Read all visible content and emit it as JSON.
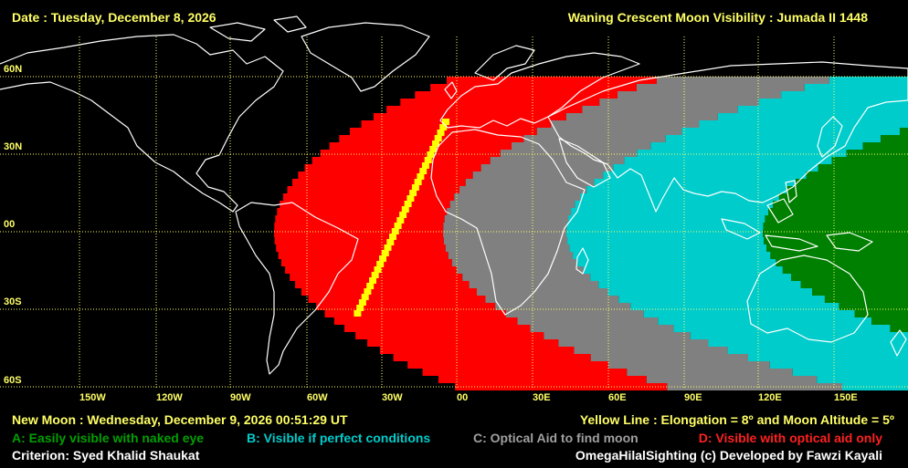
{
  "header": {
    "date": "Date : Tuesday, December 8, 2026",
    "title": "Waning Crescent Moon Visibility : Jumada II 1448"
  },
  "map": {
    "lat_labels": [
      "60N",
      "30N",
      "00",
      "30S",
      "60S"
    ],
    "lon_labels": [
      "150W",
      "120W",
      "90W",
      "60W",
      "30W",
      "00",
      "30E",
      "60E",
      "90E",
      "120E",
      "150E"
    ],
    "colors": {
      "background": "#000000",
      "zone_a": "#008000",
      "zone_b": "#00cccc",
      "zone_c": "#808080",
      "zone_d": "#ff0000",
      "yellow_line": "#ffff00",
      "grid": "#ffff66",
      "coastline": "#ffffff"
    }
  },
  "footer": {
    "new_moon": "New Moon : Wednesday, December 9, 2026  00:51:29  UT",
    "yellow_line": "Yellow Line : Elongation = 8º  and Moon Altitude = 5º",
    "legend_a": "A: Easily visible with naked eye",
    "legend_b": "B: Visible if perfect conditions",
    "legend_c": "C: Optical Aid to find moon",
    "legend_d": "D: Visible with optical aid only",
    "criterion": "Criterion: Syed Khalid Shaukat",
    "credit": "OmegaHilalSighting  (c)  Developed by Fawzi Kayali"
  }
}
